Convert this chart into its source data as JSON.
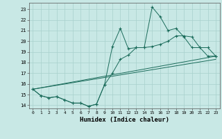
{
  "xlabel": "Humidex (Indice chaleur)",
  "xlim": [
    -0.5,
    23.5
  ],
  "ylim": [
    13.7,
    23.6
  ],
  "yticks": [
    14,
    15,
    16,
    17,
    18,
    19,
    20,
    21,
    22,
    23
  ],
  "xticks": [
    0,
    1,
    2,
    3,
    4,
    5,
    6,
    7,
    8,
    9,
    10,
    11,
    12,
    13,
    14,
    15,
    16,
    17,
    18,
    19,
    20,
    21,
    22,
    23
  ],
  "bg_color": "#c8e8e5",
  "grid_color": "#a8d0cc",
  "line_color": "#1a6b5a",
  "line1_x": [
    0,
    1,
    2,
    3,
    4,
    5,
    6,
    7,
    8,
    9,
    10,
    11,
    12,
    13,
    14,
    15,
    16,
    17,
    18,
    19,
    20,
    21,
    22,
    23
  ],
  "line1_y": [
    15.5,
    14.9,
    14.7,
    14.8,
    14.5,
    14.2,
    14.2,
    13.9,
    14.1,
    15.9,
    19.5,
    21.2,
    19.3,
    19.4,
    19.4,
    23.2,
    22.3,
    21.0,
    21.2,
    20.4,
    19.4,
    19.4,
    18.6,
    18.6
  ],
  "line2_x": [
    0,
    1,
    2,
    3,
    4,
    5,
    6,
    7,
    8,
    9,
    10,
    11,
    12,
    13,
    14,
    15,
    16,
    17,
    18,
    19,
    20,
    21,
    22,
    23
  ],
  "line2_y": [
    15.5,
    14.9,
    14.7,
    14.8,
    14.5,
    14.2,
    14.2,
    13.9,
    14.1,
    15.9,
    17.0,
    18.3,
    18.7,
    19.4,
    19.4,
    19.5,
    19.7,
    20.0,
    20.5,
    20.5,
    20.4,
    19.4,
    19.4,
    18.6
  ],
  "line3_x": [
    0,
    23
  ],
  "line3_y": [
    15.5,
    18.6
  ],
  "line4_x": [
    0,
    23
  ],
  "line4_y": [
    15.5,
    18.6
  ]
}
